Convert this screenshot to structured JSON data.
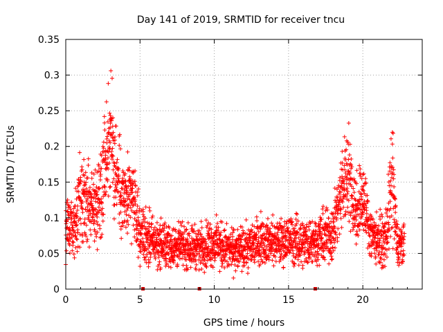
{
  "chart_data": {
    "type": "scatter",
    "title": "Day 141 of 2019, SRMTID for receiver tncu",
    "xlabel": "GPS time / hours",
    "ylabel": "SRMTID / TECUs",
    "xlim": [
      0,
      24
    ],
    "ylim": [
      0,
      0.35
    ],
    "xticks": [
      0,
      5,
      10,
      15,
      20
    ],
    "yticks": [
      0,
      0.05,
      0.1,
      0.15,
      0.2,
      0.25,
      0.3,
      0.35
    ],
    "xtick_labels": [
      "0",
      "5",
      "10",
      "15",
      "20"
    ],
    "ytick_labels": [
      "0",
      "0.05",
      "0.1",
      "0.15",
      "0.2",
      "0.25",
      "0.3",
      "0.35"
    ],
    "grid": true,
    "marker": "+",
    "marker_color": "#ff0000",
    "bottom_marker_color": "#cc0000",
    "x_range_of_data": [
      0,
      22.8
    ],
    "envelope": [
      {
        "x": 0.0,
        "y": 0.09,
        "spread": 0.03
      },
      {
        "x": 0.5,
        "y": 0.085,
        "spread": 0.03
      },
      {
        "x": 1.0,
        "y": 0.11,
        "spread": 0.05
      },
      {
        "x": 1.5,
        "y": 0.12,
        "spread": 0.04
      },
      {
        "x": 2.0,
        "y": 0.11,
        "spread": 0.04
      },
      {
        "x": 2.5,
        "y": 0.16,
        "spread": 0.05
      },
      {
        "x": 3.0,
        "y": 0.22,
        "spread": 0.07
      },
      {
        "x": 3.5,
        "y": 0.15,
        "spread": 0.05
      },
      {
        "x": 4.0,
        "y": 0.12,
        "spread": 0.04
      },
      {
        "x": 4.5,
        "y": 0.13,
        "spread": 0.04
      },
      {
        "x": 5.0,
        "y": 0.08,
        "spread": 0.03
      },
      {
        "x": 6.0,
        "y": 0.065,
        "spread": 0.025
      },
      {
        "x": 7.0,
        "y": 0.06,
        "spread": 0.022
      },
      {
        "x": 8.0,
        "y": 0.06,
        "spread": 0.022
      },
      {
        "x": 9.0,
        "y": 0.06,
        "spread": 0.022
      },
      {
        "x": 10.0,
        "y": 0.065,
        "spread": 0.025
      },
      {
        "x": 11.0,
        "y": 0.055,
        "spread": 0.022
      },
      {
        "x": 12.0,
        "y": 0.055,
        "spread": 0.022
      },
      {
        "x": 13.0,
        "y": 0.07,
        "spread": 0.025
      },
      {
        "x": 14.0,
        "y": 0.065,
        "spread": 0.022
      },
      {
        "x": 15.0,
        "y": 0.07,
        "spread": 0.025
      },
      {
        "x": 16.0,
        "y": 0.065,
        "spread": 0.025
      },
      {
        "x": 17.0,
        "y": 0.07,
        "spread": 0.025
      },
      {
        "x": 18.0,
        "y": 0.08,
        "spread": 0.03
      },
      {
        "x": 18.5,
        "y": 0.13,
        "spread": 0.04
      },
      {
        "x": 19.0,
        "y": 0.17,
        "spread": 0.05
      },
      {
        "x": 19.5,
        "y": 0.11,
        "spread": 0.04
      },
      {
        "x": 20.0,
        "y": 0.13,
        "spread": 0.04
      },
      {
        "x": 20.5,
        "y": 0.08,
        "spread": 0.03
      },
      {
        "x": 21.0,
        "y": 0.07,
        "spread": 0.025
      },
      {
        "x": 21.5,
        "y": 0.065,
        "spread": 0.025
      },
      {
        "x": 22.0,
        "y": 0.15,
        "spread": 0.06
      },
      {
        "x": 22.3,
        "y": 0.06,
        "spread": 0.025
      },
      {
        "x": 22.8,
        "y": 0.06,
        "spread": 0.02
      }
    ],
    "points_per_hour": 120,
    "bottom_markers_x": [
      5.2,
      9.0,
      16.8
    ]
  }
}
